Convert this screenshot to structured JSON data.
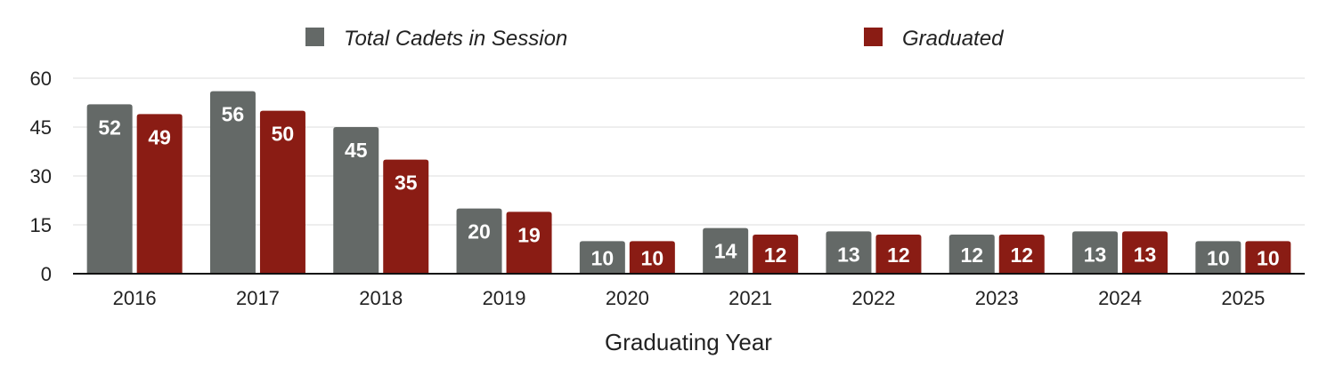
{
  "chart_data": {
    "type": "bar",
    "categories": [
      "2016",
      "2017",
      "2018",
      "2019",
      "2020",
      "2021",
      "2022",
      "2023",
      "2024",
      "2025"
    ],
    "series": [
      {
        "name": "Total Cadets in Session",
        "color": "#646967",
        "values": [
          52,
          56,
          45,
          20,
          10,
          14,
          13,
          12,
          13,
          10
        ]
      },
      {
        "name": "Graduated",
        "color": "#8a1c14",
        "values": [
          49,
          50,
          35,
          19,
          10,
          12,
          12,
          12,
          13,
          10
        ]
      }
    ],
    "title": "",
    "xlabel": "Graduating Year",
    "ylabel": "",
    "ylim": [
      0,
      60
    ],
    "yticks": [
      0,
      15,
      30,
      45,
      60
    ],
    "grid": true,
    "legend_position": "top",
    "data_labels": true
  }
}
